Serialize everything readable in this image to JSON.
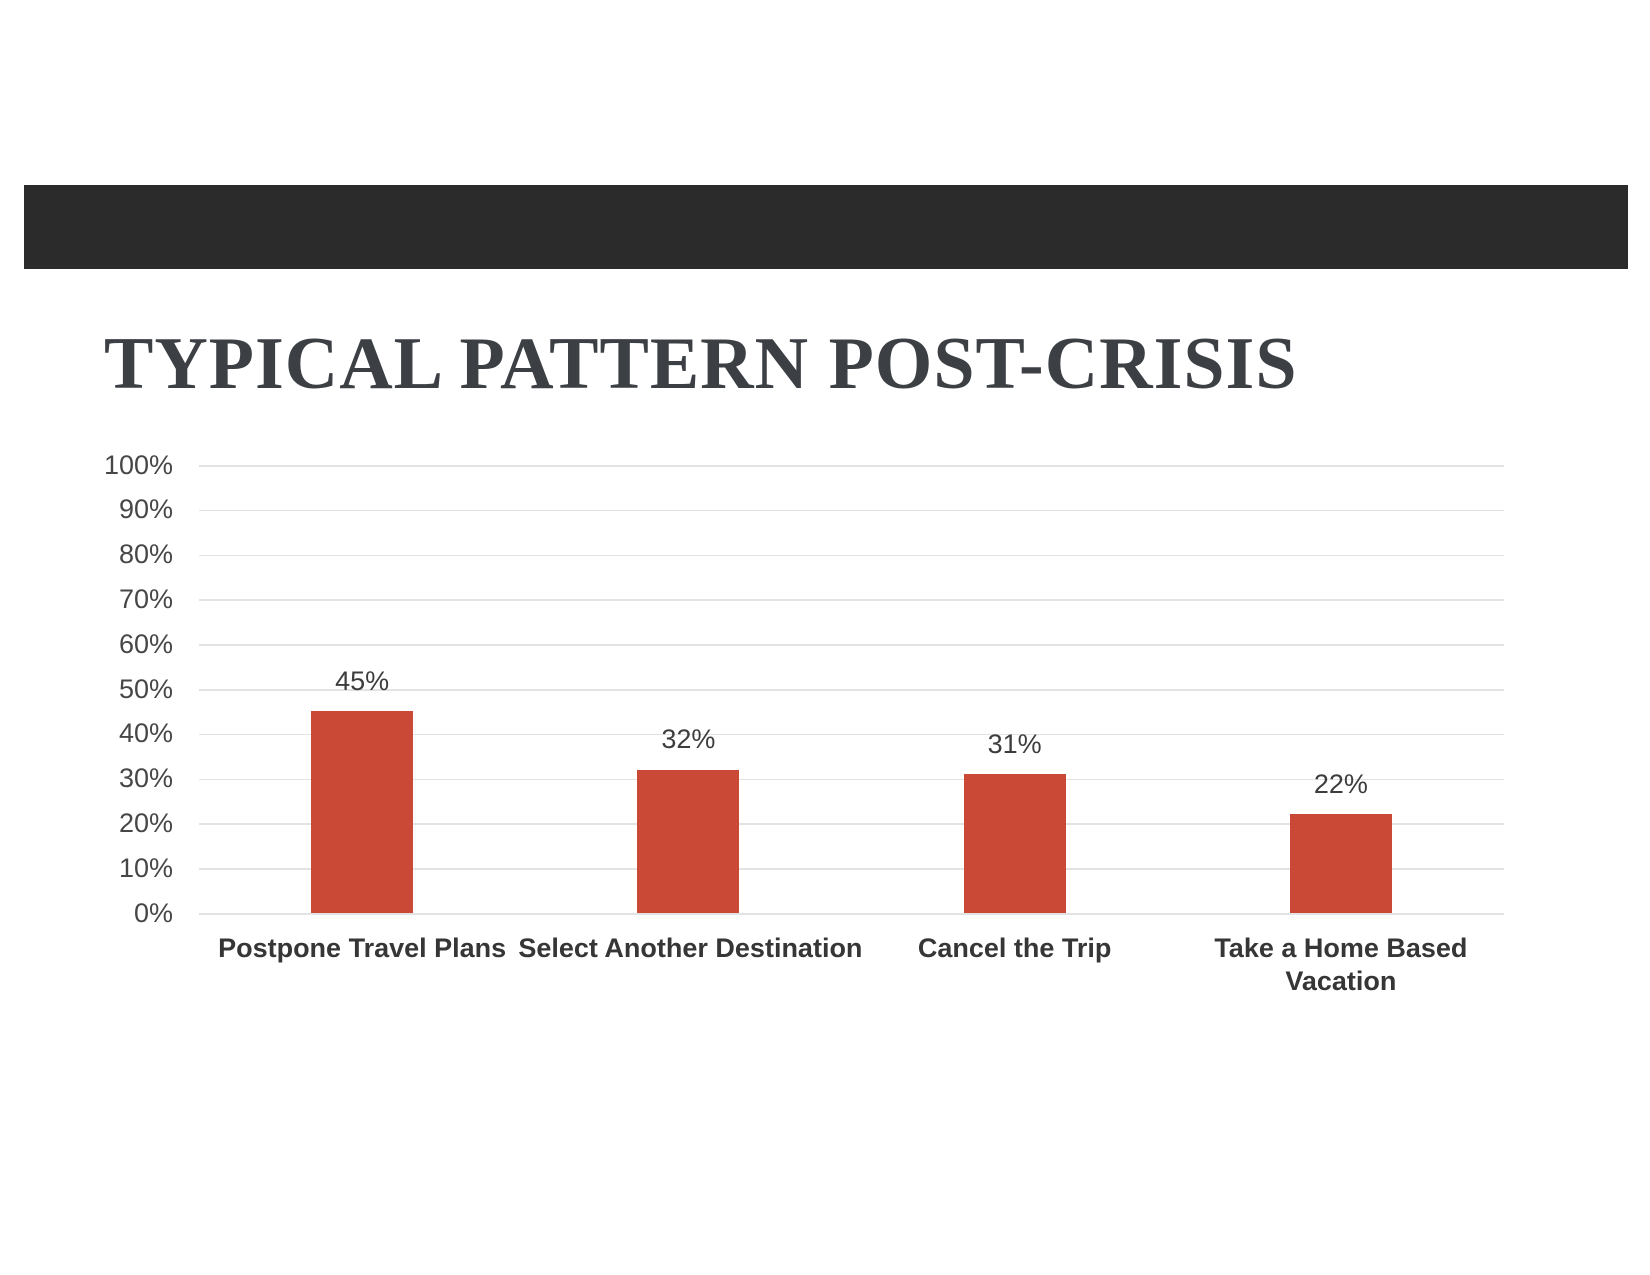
{
  "title": {
    "text": "TYPICAL PATTERN POST-CRISIS"
  },
  "colors": {
    "header_bar": "#2b2b2b",
    "bar_fill": "#c94836",
    "gridline": "#e3e3e3",
    "title_text": "#3c4044"
  },
  "chart_data": {
    "type": "bar",
    "title": "TYPICAL PATTERN POST-CRISIS",
    "categories": [
      "Postpone Travel Plans",
      "Select Another Destination",
      "Cancel the Trip",
      "Take a Home Based Vacation"
    ],
    "category_lines": [
      [
        "Postpone Travel Plans"
      ],
      [
        "Select Another Destination"
      ],
      [
        "Cancel the Trip"
      ],
      [
        "Take a Home Based",
        "Vacation"
      ]
    ],
    "values": [
      45,
      32,
      31,
      22
    ],
    "value_labels": [
      "45%",
      "32%",
      "31%",
      "22%"
    ],
    "y_ticks": [
      "100%",
      "90%",
      "80%",
      "70%",
      "60%",
      "50%",
      "40%",
      "30%",
      "20%",
      "10%",
      "0%"
    ],
    "ylim": [
      0,
      100
    ],
    "xlabel": "",
    "ylabel": "",
    "grid": true,
    "legend": "none",
    "bar_color": "#c94836"
  }
}
